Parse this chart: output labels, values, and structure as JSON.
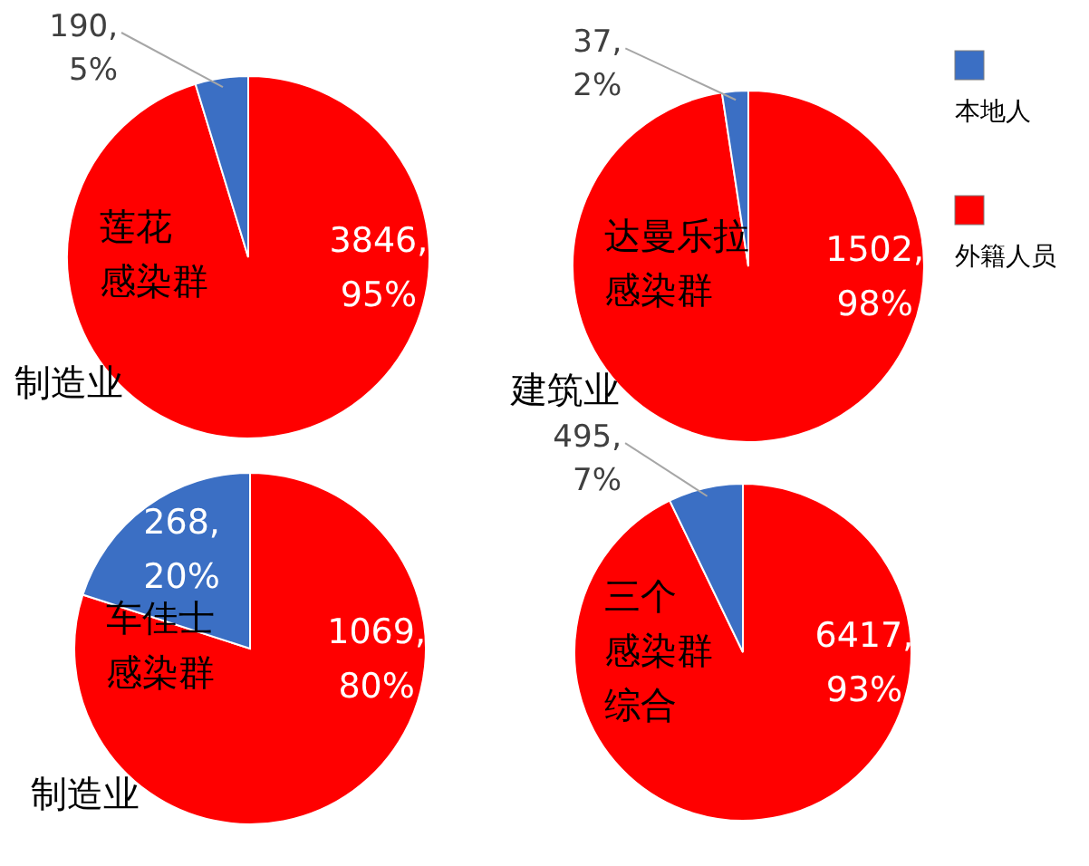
{
  "chart_data": [
    {
      "type": "pie",
      "title": "莲花感染群",
      "values": [
        190,
        3846
      ],
      "colors": [
        "#3b6fc4",
        "#ff0000"
      ],
      "value_labels": [
        "190,\n5%",
        "3846,\n95%"
      ],
      "annotations": [
        "制造业"
      ],
      "legend": false
    },
    {
      "type": "pie",
      "title": "达曼乐拉感染群",
      "categories": [
        "本地人",
        "外籍人员"
      ],
      "values": [
        37,
        1502
      ],
      "colors": [
        "#3b6fc4",
        "#ff0000"
      ],
      "value_labels": [
        "37,\n2%",
        "1502,\n98%"
      ],
      "annotations": [
        "建筑业"
      ],
      "legend": "right"
    },
    {
      "type": "pie",
      "title": "车佳士感染群",
      "values": [
        268,
        1069
      ],
      "colors": [
        "#3b6fc4",
        "#ff0000"
      ],
      "value_labels": [
        "268,\n20%",
        "1069,\n80%"
      ],
      "annotations": [
        "制造业"
      ],
      "legend": false
    },
    {
      "type": "pie",
      "title": "三个感染群综合",
      "values": [
        495,
        6417
      ],
      "colors": [
        "#3b6fc4",
        "#ff0000"
      ],
      "value_labels": [
        "495,\n7%",
        "6417,\n93%"
      ],
      "legend": false
    }
  ]
}
